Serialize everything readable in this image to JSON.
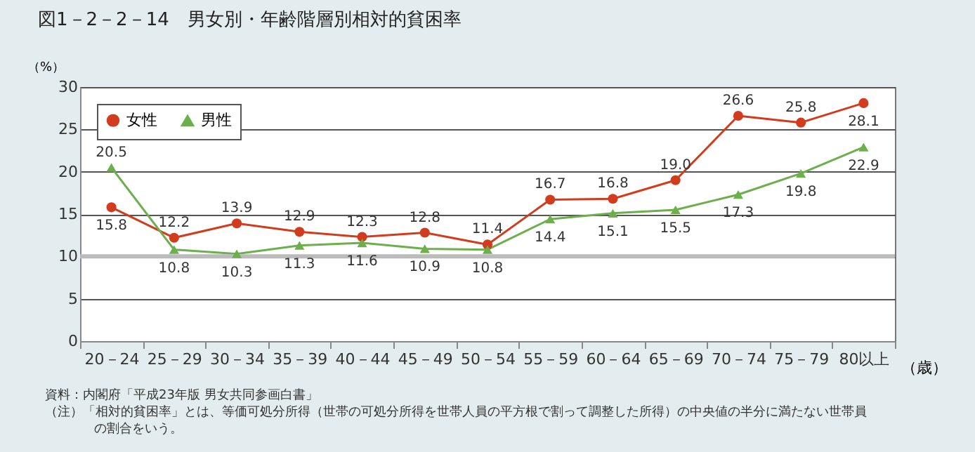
{
  "chart_data": {
    "type": "line",
    "title": "図1－2－2－14　男女別・年齢階層別相対的貧困率",
    "ylabel": "（%）",
    "xlabel": "（歳）",
    "categories": [
      "20－24",
      "25－29",
      "30－34",
      "35－39",
      "40－44",
      "45－49",
      "50－54",
      "55－59",
      "60－64",
      "65－69",
      "70－74",
      "75－79",
      "80以上"
    ],
    "series": [
      {
        "name": "女性",
        "color": "#d23c1e",
        "marker": "circle",
        "values": [
          15.8,
          12.2,
          13.9,
          12.9,
          12.3,
          12.8,
          11.4,
          16.7,
          16.8,
          19.0,
          26.6,
          25.8,
          28.1
        ],
        "value_labels": [
          "15.8",
          "12.2",
          "13.9",
          "12.9",
          "12.3",
          "12.8",
          "11.4",
          "16.7",
          "16.8",
          "19.0",
          "26.6",
          "25.8",
          "28.1"
        ]
      },
      {
        "name": "男性",
        "color": "#6caf4c",
        "marker": "triangle",
        "values": [
          20.5,
          10.8,
          10.3,
          11.3,
          11.6,
          10.9,
          10.8,
          14.4,
          15.1,
          15.5,
          17.3,
          19.8,
          22.9
        ],
        "value_labels": [
          "20.5",
          "10.8",
          "10.3",
          "11.3",
          "11.6",
          "10.9",
          "10.8",
          "14.4",
          "15.1",
          "15.5",
          "17.3",
          "19.8",
          "22.9"
        ]
      }
    ],
    "ylim": [
      0,
      30
    ],
    "yticks": [
      0,
      5,
      10,
      15,
      20,
      25,
      30
    ],
    "grid": "y",
    "ref_lines": [
      {
        "axis": "y",
        "value": 10,
        "color": "#bbbbbb"
      }
    ],
    "legend": "top left",
    "line_style": "solid",
    "annotations": [
      "資料：内閣府「平成23年版 男女共同参画白書」",
      "（注）「相対的貧困率」とは、等価可処分所得（世帯の可処分所得を世帯人員の平方根で割って調整した所得）の中央値の半分に満たない世帯員",
      "の割合をいう。"
    ]
  }
}
